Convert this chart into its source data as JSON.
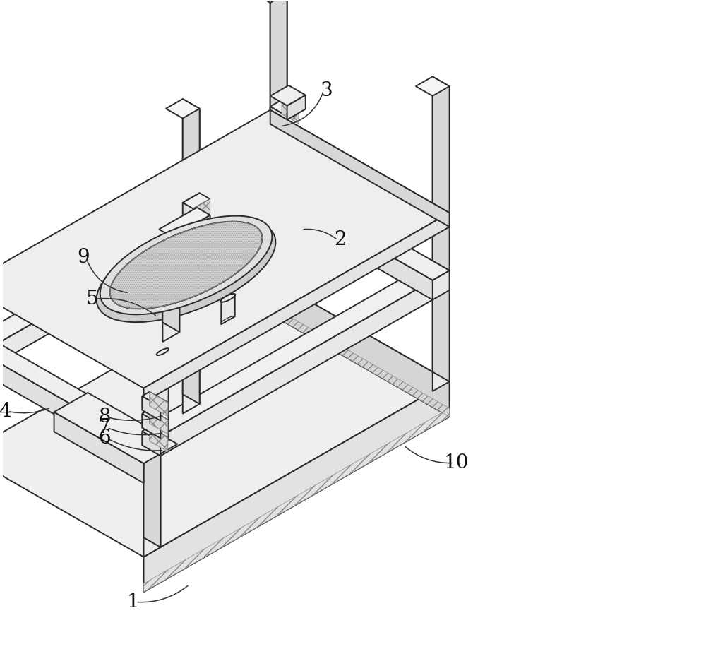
{
  "bg_color": "#ffffff",
  "lc": "#2a2a2a",
  "lw": 1.4,
  "fc_white": "#ffffff",
  "fc_light": "#f2f2f2",
  "fc_mid": "#e0e0e0",
  "fc_dark": "#cccccc",
  "fc_darker": "#b8b8b8",
  "hatch_color": "#666666",
  "label_fs": 20,
  "figsize": [
    10.0,
    9.26
  ],
  "dpi": 100
}
